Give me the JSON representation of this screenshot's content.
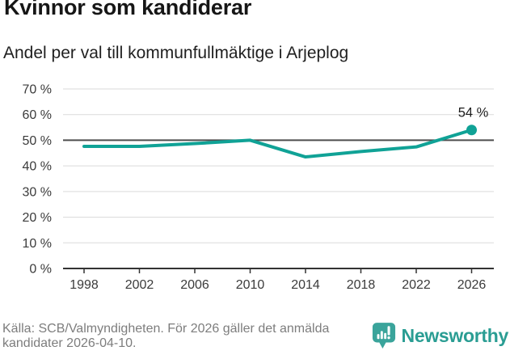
{
  "header": {
    "title": "Kvinnor som kandiderar",
    "subtitle": "Andel per val till kommunfullmäktige i Arjeplog"
  },
  "chart_data": {
    "type": "line",
    "title": "Kvinnor som kandiderar",
    "subtitle": "Andel per val till kommunfullmäktige i Arjeplog",
    "x": [
      1998,
      2002,
      2006,
      2010,
      2014,
      2018,
      2022,
      2026
    ],
    "values": [
      47.6,
      47.6,
      48.7,
      50.0,
      43.5,
      45.6,
      47.4,
      54.0
    ],
    "end_label": "54 %",
    "xlabel": "",
    "ylabel": "",
    "ylim": [
      0,
      70
    ],
    "ytick_step": 10,
    "ytick_suffix": " %",
    "reference_line": 50,
    "grid": true,
    "legend": "none",
    "line_color": "#10a296",
    "dot_color": "#10a296",
    "grid_color": "#dadada",
    "reference_line_color": "#4d4d4d",
    "axis_color": "#333333",
    "tick_label_color": "#3b3b3b"
  },
  "footer": {
    "source_line1": "Källa: SCB/Valmyndigheten. För 2026 gäller det anmälda",
    "source_line2": "kandidater 2026-04-10.",
    "logo_text": "Newsworthy",
    "logo_color": "#2a9d93"
  }
}
